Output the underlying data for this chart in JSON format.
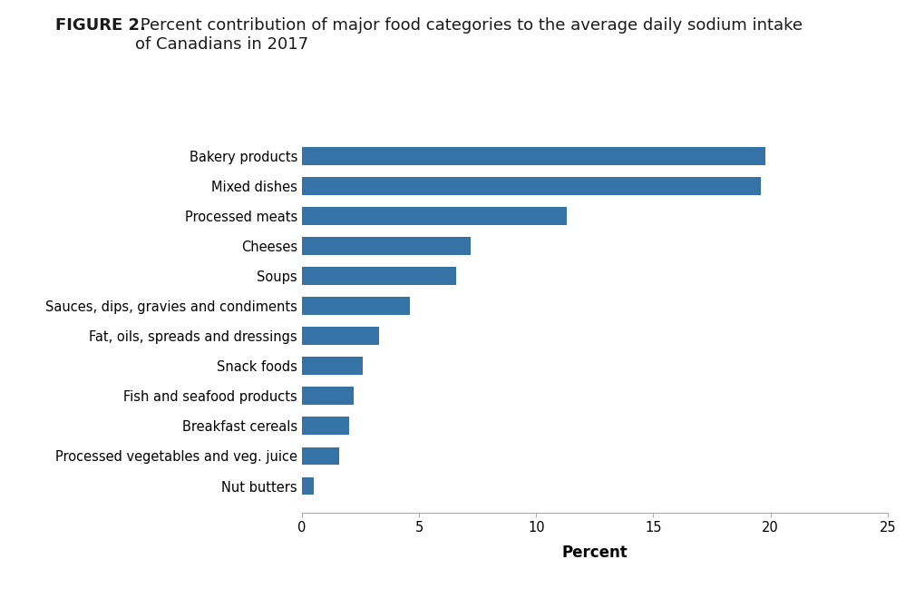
{
  "title_bold": "FIGURE 2.",
  "title_normal": " Percent contribution of major food categories to the average daily sodium intake\nof Canadians in 2017",
  "categories": [
    "Nut butters",
    "Processed vegetables and veg. juice",
    "Breakfast cereals",
    "Fish and seafood products",
    "Snack foods",
    "Fat, oils, spreads and dressings",
    "Sauces, dips, gravies and condiments",
    "Soups",
    "Cheeses",
    "Processed meats",
    "Mixed dishes",
    "Bakery products"
  ],
  "values": [
    0.5,
    1.6,
    2.0,
    2.2,
    2.6,
    3.3,
    4.6,
    6.6,
    7.2,
    11.3,
    19.6,
    19.8
  ],
  "bar_color": "#3572A5",
  "xlabel": "Percent",
  "xlim": [
    0,
    25
  ],
  "xticks": [
    0,
    5,
    10,
    15,
    20,
    25
  ],
  "background_color": "#ffffff",
  "title_fontsize": 13,
  "label_fontsize": 10.5,
  "tick_fontsize": 10.5,
  "xlabel_fontsize": 12
}
